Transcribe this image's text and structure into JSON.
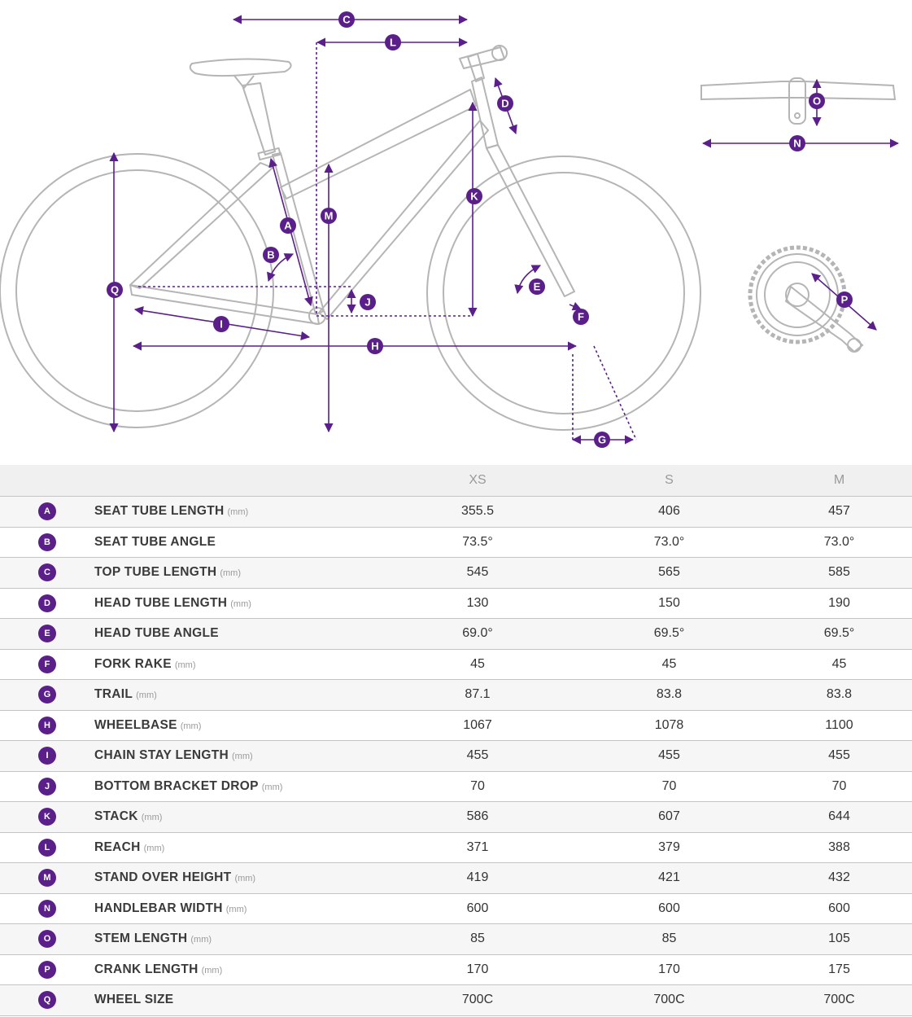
{
  "sizes": [
    "XS",
    "S",
    "M"
  ],
  "rows": [
    {
      "key": "A",
      "name": "SEAT TUBE LENGTH",
      "unit": "(mm)",
      "values": [
        "355.5",
        "406",
        "457"
      ]
    },
    {
      "key": "B",
      "name": "SEAT TUBE ANGLE",
      "unit": "",
      "values": [
        "73.5°",
        "73.0°",
        "73.0°"
      ]
    },
    {
      "key": "C",
      "name": "TOP TUBE LENGTH",
      "unit": "(mm)",
      "values": [
        "545",
        "565",
        "585"
      ]
    },
    {
      "key": "D",
      "name": "HEAD TUBE LENGTH",
      "unit": "(mm)",
      "values": [
        "130",
        "150",
        "190"
      ]
    },
    {
      "key": "E",
      "name": "HEAD TUBE ANGLE",
      "unit": "",
      "values": [
        "69.0°",
        "69.5°",
        "69.5°"
      ]
    },
    {
      "key": "F",
      "name": "FORK RAKE",
      "unit": "(mm)",
      "values": [
        "45",
        "45",
        "45"
      ]
    },
    {
      "key": "G",
      "name": "TRAIL",
      "unit": "(mm)",
      "values": [
        "87.1",
        "83.8",
        "83.8"
      ]
    },
    {
      "key": "H",
      "name": "WHEELBASE",
      "unit": "(mm)",
      "values": [
        "1067",
        "1078",
        "1100"
      ]
    },
    {
      "key": "I",
      "name": "CHAIN STAY LENGTH",
      "unit": "(mm)",
      "values": [
        "455",
        "455",
        "455"
      ]
    },
    {
      "key": "J",
      "name": "BOTTOM BRACKET DROP",
      "unit": "(mm)",
      "values": [
        "70",
        "70",
        "70"
      ]
    },
    {
      "key": "K",
      "name": "STACK",
      "unit": "(mm)",
      "values": [
        "586",
        "607",
        "644"
      ]
    },
    {
      "key": "L",
      "name": "REACH",
      "unit": "(mm)",
      "values": [
        "371",
        "379",
        "388"
      ]
    },
    {
      "key": "M",
      "name": "STAND OVER HEIGHT",
      "unit": "(mm)",
      "values": [
        "419",
        "421",
        "432"
      ]
    },
    {
      "key": "N",
      "name": "HANDLEBAR WIDTH",
      "unit": "(mm)",
      "values": [
        "600",
        "600",
        "600"
      ]
    },
    {
      "key": "O",
      "name": "STEM LENGTH",
      "unit": "(mm)",
      "values": [
        "85",
        "85",
        "105"
      ]
    },
    {
      "key": "P",
      "name": "CRANK LENGTH",
      "unit": "(mm)",
      "values": [
        "170",
        "170",
        "175"
      ]
    },
    {
      "key": "Q",
      "name": "WHEEL SIZE",
      "unit": "",
      "values": [
        "700C",
        "700C",
        "700C"
      ]
    }
  ],
  "colors": {
    "accent": "#5b1f8a",
    "frame_line": "#b5b5b5",
    "header_bg": "#f0f0f0"
  }
}
